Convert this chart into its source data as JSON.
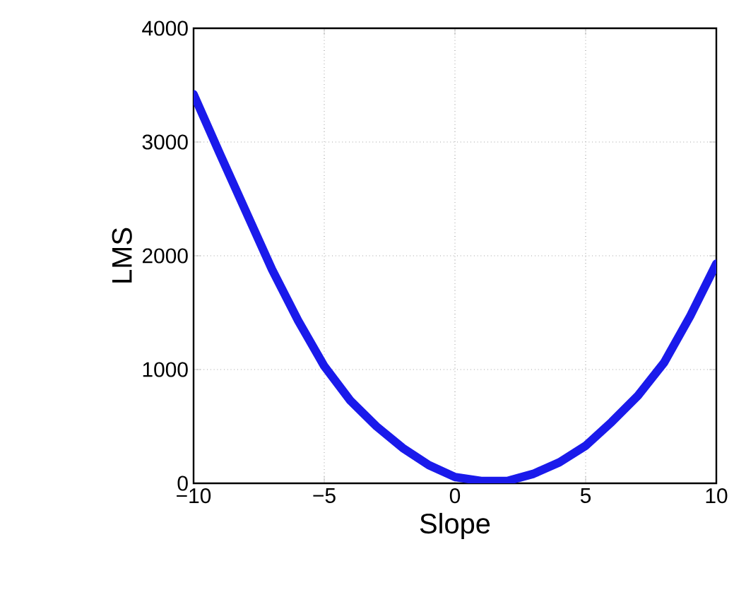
{
  "chart_data": {
    "type": "line",
    "xlabel": "Slope",
    "ylabel": "LMS",
    "x": [
      -10,
      -9,
      -8,
      -7,
      -6,
      -5,
      -4,
      -3,
      -2,
      -1,
      0,
      1,
      2,
      3,
      4,
      5,
      6,
      7,
      8,
      9,
      10
    ],
    "series": [
      {
        "color": "#1a1aeb",
        "values": [
          3420,
          2900,
          2390,
          1880,
          1430,
          1030,
          726,
          500,
          311,
          160,
          55,
          20,
          20,
          83,
          185,
          330,
          540,
          770,
          1060,
          1470,
          1930
        ]
      }
    ],
    "xlim": [
      -10,
      10
    ],
    "ylim": [
      0,
      4000
    ],
    "xticks": [
      {
        "value": -10,
        "label": "−10"
      },
      {
        "value": -5,
        "label": "−5"
      },
      0,
      5,
      10
    ],
    "yticks": [
      0,
      1000,
      2000,
      3000,
      4000
    ],
    "grid": true,
    "line_style": "solid",
    "marker": "none"
  }
}
